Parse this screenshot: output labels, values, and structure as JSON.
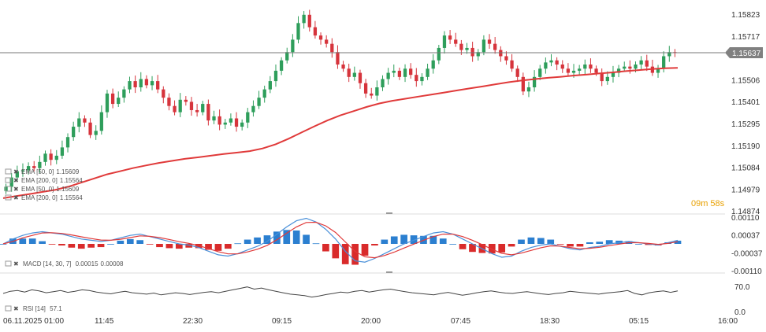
{
  "chart_data": {
    "type": "candlestick",
    "instrument_current_price": "1.15637",
    "countdown": {
      "minutes": "09",
      "m": "m",
      "seconds": "58",
      "s": "s"
    },
    "price_axis": {
      "ticks": [
        "1.15823",
        "1.15717",
        "1.15506",
        "1.15401",
        "1.15295",
        "1.15190",
        "1.15084",
        "1.14979",
        "1.14874"
      ],
      "ylim": [
        1.14874,
        1.15823
      ]
    },
    "time_axis": {
      "ticks": [
        "06.11.2025 01:00",
        "11:45",
        "22:30",
        "09:15",
        "20:00",
        "07:45",
        "18:30",
        "05:15",
        "16:00"
      ]
    },
    "overlays": [
      {
        "name": "EMA [50, 0]",
        "value": "1.15609",
        "color": "#5b8fd9"
      },
      {
        "name": "EMA [200, 0]",
        "value": "1.15564",
        "color": "#e03a3a"
      },
      {
        "name": "EMA [50, 0]",
        "value": "1.15609",
        "color": "#5b8fd9"
      },
      {
        "name": "EMA [200, 0]",
        "value": "1.15564",
        "color": "#e03a3a"
      }
    ],
    "ema200_series": [
      1.14935,
      1.14945,
      1.14955,
      1.14965,
      1.14975,
      1.1499,
      1.1501,
      1.1503,
      1.1505,
      1.15065,
      1.1508,
      1.15093,
      1.15105,
      1.15115,
      1.15125,
      1.15132,
      1.1514,
      1.15148,
      1.15155,
      1.15162,
      1.15175,
      1.15195,
      1.15222,
      1.15252,
      1.15282,
      1.1531,
      1.15335,
      1.15355,
      1.15375,
      1.15392,
      1.15405,
      1.15415,
      1.15425,
      1.15435,
      1.15445,
      1.15455,
      1.15465,
      1.15475,
      1.15485,
      1.15495,
      1.15503,
      1.1551,
      1.15516,
      1.15521,
      1.15527,
      1.15532,
      1.15537,
      1.15542,
      1.15548,
      1.15553,
      1.15558,
      1.15562,
      1.15564
    ],
    "close_series": [
      1.1499,
      1.15035,
      1.15065,
      1.1507,
      1.1509,
      1.1508,
      1.1511,
      1.1515,
      1.1512,
      1.1514,
      1.1518,
      1.1523,
      1.1528,
      1.1532,
      1.153,
      1.1524,
      1.1526,
      1.1535,
      1.1544,
      1.1539,
      1.1542,
      1.1546,
      1.155,
      1.1547,
      1.1551,
      1.1548,
      1.155,
      1.1546,
      1.1542,
      1.1538,
      1.1535,
      1.1541,
      1.154,
      1.1536,
      1.1535,
      1.1539,
      1.1531,
      1.1533,
      1.1529,
      1.153,
      1.1532,
      1.1528,
      1.153,
      1.1535,
      1.1538,
      1.1542,
      1.1546,
      1.155,
      1.1555,
      1.156,
      1.1564,
      1.157,
      1.1578,
      1.1582,
      1.1576,
      1.1572,
      1.157,
      1.1568,
      1.1564,
      1.1558,
      1.1556,
      1.1552,
      1.1554,
      1.1549,
      1.1544,
      1.1543,
      1.1547,
      1.1551,
      1.1554,
      1.1555,
      1.1552,
      1.1556,
      1.1553,
      1.155,
      1.1552,
      1.1556,
      1.156,
      1.1566,
      1.1572,
      1.157,
      1.1568,
      1.1565,
      1.1566,
      1.1562,
      1.1564,
      1.157,
      1.1568,
      1.1565,
      1.1562,
      1.156,
      1.1556,
      1.1552,
      1.1545,
      1.1547,
      1.1552,
      1.1556,
      1.1559,
      1.156,
      1.1558,
      1.1556,
      1.1554,
      1.1555,
      1.1556,
      1.1558,
      1.1556,
      1.1554,
      1.155,
      1.1552,
      1.1554,
      1.1556,
      1.1557,
      1.1556,
      1.1558,
      1.156,
      1.1557,
      1.1554,
      1.1556,
      1.1562,
      1.1564,
      1.15637
    ],
    "macd": {
      "label": "MACD [14, 30, 7]",
      "values": [
        "0.00015",
        "0.00008"
      ],
      "ticks": [
        "0.00110",
        "0.00037",
        "-0.00037",
        "-0.00110"
      ],
      "ylim": [
        -0.0011,
        0.0011
      ],
      "macd_series": [
        0.0,
        0.0002,
        0.00035,
        0.00045,
        0.0005,
        0.00045,
        0.0004,
        0.0003,
        0.0002,
        0.00015,
        0.0001,
        0.00015,
        0.00025,
        0.00035,
        0.0004,
        0.0003,
        0.0002,
        0.0001,
        0.0,
        -5e-05,
        -0.00015,
        -0.0003,
        -0.00045,
        -0.0005,
        -0.0004,
        -0.00025,
        -0.0001,
        0.0001,
        0.0004,
        0.0007,
        0.00095,
        0.00105,
        0.0009,
        0.0006,
        0.0002,
        -0.0003,
        -0.0007,
        -0.00075,
        -0.0006,
        -0.0004,
        -0.0002,
        0.0,
        0.00015,
        0.0003,
        0.00045,
        0.0005,
        0.0004,
        0.0002,
        0.0,
        -0.0002,
        -0.0004,
        -0.00055,
        -0.0005,
        -0.0003,
        -0.00015,
        -5e-05,
        0.0,
        -0.0001,
        -0.0002,
        -0.00025,
        -0.00015,
        -0.0001,
        0.0,
        5e-05,
        0.0001,
        5e-05,
        0.0,
        -5e-05,
        5e-05,
        0.00015
      ],
      "signal_series": [
        0.0,
        0.0001,
        0.00025,
        0.00035,
        0.00045,
        0.00046,
        0.00043,
        0.00037,
        0.00029,
        0.00022,
        0.00016,
        0.00015,
        0.00019,
        0.00026,
        0.00033,
        0.00031,
        0.00026,
        0.00018,
        9e-05,
        2e-05,
        -7e-05,
        -0.00019,
        -0.00032,
        -0.00041,
        -0.00041,
        -0.00033,
        -0.00022,
        -6e-05,
        0.00017,
        0.00044,
        0.0007,
        0.00088,
        0.00089,
        0.00074,
        0.00047,
        8e-05,
        -0.00031,
        -0.00053,
        -0.00057,
        -0.00048,
        -0.00034,
        -0.00017,
        -1e-05,
        0.00015,
        0.0003,
        0.0004,
        0.0004,
        0.0003,
        0.00015,
        -3e-05,
        -0.00022,
        -0.00039,
        -0.00045,
        -0.00038,
        -0.00027,
        -0.00016,
        -8e-05,
        -9e-05,
        -0.00015,
        -0.0002,
        -0.00018,
        -0.00014,
        -7e-05,
        -1e-05,
        5e-05,
        5e-05,
        2e-05,
        -2e-05,
        2e-05,
        9e-05
      ],
      "macd_color": "#4a90d9",
      "signal_color": "#e03a3a",
      "hist_pos_color": "#2b7fd0",
      "hist_neg_color": "#d92b2b"
    },
    "rsi": {
      "label": "RSI [14]",
      "value": "57.1",
      "ticks": [
        "70.0",
        "0.0"
      ],
      "ylim": [
        0,
        100
      ],
      "series": [
        50,
        56,
        58,
        54,
        60,
        57,
        52,
        55,
        58,
        53,
        56,
        60,
        58,
        54,
        51,
        49,
        53,
        56,
        52,
        50,
        48,
        51,
        46,
        49,
        52,
        50,
        47,
        50,
        53,
        55,
        52,
        56,
        60,
        64,
        68,
        62,
        65,
        60,
        56,
        52,
        48,
        46,
        44,
        40,
        43,
        47,
        50,
        54,
        52,
        56,
        58,
        54,
        57,
        60,
        62,
        58,
        55,
        52,
        50,
        48,
        46,
        50,
        53,
        49,
        45,
        48,
        52,
        55,
        57,
        54,
        51,
        50,
        53,
        55,
        52,
        49,
        47,
        50,
        52,
        56,
        54,
        52,
        50,
        48,
        51,
        53,
        55,
        58,
        50,
        46,
        52,
        55,
        57,
        53,
        57.1
      ],
      "color": "#444444"
    },
    "colors": {
      "bull": "#2e9e5b",
      "bear": "#d6343c",
      "ema200": "#e03a3a",
      "price_line": "#777777",
      "price_tag": "#808080",
      "grid": "#e6e6e6",
      "separator": "#dddddd"
    }
  }
}
